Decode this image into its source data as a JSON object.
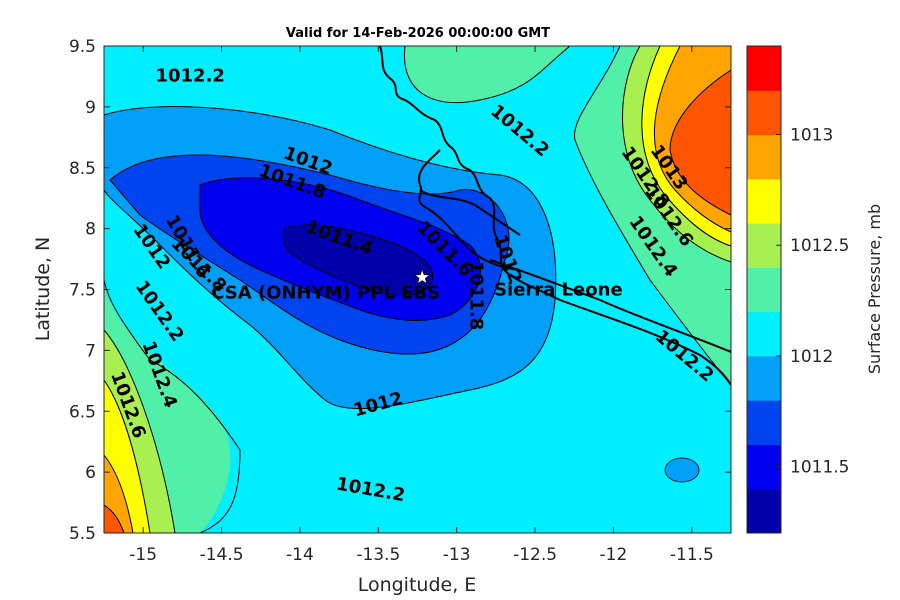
{
  "title": "Valid for 14-Feb-2026 00:00:00 GMT",
  "chart_data": {
    "type": "contour",
    "xlabel": "Longitude, E",
    "ylabel": "Latitude, N",
    "xlim": [
      -15.25,
      -11.25
    ],
    "ylim": [
      5.5,
      9.5
    ],
    "xticks": [
      -15,
      -14.5,
      -14,
      -13.5,
      -13,
      -12.5,
      -12,
      -11.5
    ],
    "yticks": [
      5.5,
      6,
      6.5,
      7,
      7.5,
      8,
      8.5,
      9,
      9.5
    ],
    "xtick_labels": [
      "-15",
      "-14.5",
      "-14",
      "-13.5",
      "-13",
      "-12.5",
      "-12",
      "-11.5"
    ],
    "ytick_labels": [
      "5.5",
      "6",
      "6.5",
      "7",
      "7.5",
      "8",
      "8.5",
      "9",
      "9.5"
    ],
    "colorbar": {
      "label": "Surface Pressure, mb",
      "range": [
        1011.2,
        1013.4
      ],
      "levels": [
        1011.2,
        1011.4,
        1011.6,
        1011.8,
        1012.0,
        1012.2,
        1012.4,
        1012.6,
        1012.8,
        1013.0,
        1013.2,
        1013.4
      ],
      "colors": [
        "#0000aa",
        "#0000f0",
        "#0044f0",
        "#00a0f8",
        "#00eefe",
        "#50f0a8",
        "#a8f050",
        "#fefe00",
        "#ffa400",
        "#ff5400",
        "#ff0000",
        "#aa0000"
      ],
      "tick_values": [
        1011.5,
        1012,
        1012.5,
        1013
      ],
      "tick_labels": [
        "1011.5",
        "1012",
        "1012.5",
        "1013"
      ]
    },
    "contour_labels": [
      {
        "text": "1012.2",
        "lon": -14.7,
        "lat": 9.25,
        "angle": 0
      },
      {
        "text": "1012",
        "lon": -13.95,
        "lat": 8.55,
        "angle": 20
      },
      {
        "text": "1011.8",
        "lon": -14.05,
        "lat": 8.38,
        "angle": 20
      },
      {
        "text": "1011.4",
        "lon": -13.75,
        "lat": 7.92,
        "angle": 20
      },
      {
        "text": "1011.6",
        "lon": -14.72,
        "lat": 7.85,
        "angle": 60
      },
      {
        "text": "1011.6",
        "lon": -13.08,
        "lat": 7.83,
        "angle": 45
      },
      {
        "text": "1011.8",
        "lon": -14.65,
        "lat": 7.7,
        "angle": 45
      },
      {
        "text": "1012",
        "lon": -14.95,
        "lat": 7.85,
        "angle": 55
      },
      {
        "text": "1012.2",
        "lon": -14.9,
        "lat": 7.32,
        "angle": 55
      },
      {
        "text": "1012.4",
        "lon": -14.9,
        "lat": 6.8,
        "angle": 70
      },
      {
        "text": "1012.6",
        "lon": -15.1,
        "lat": 6.55,
        "angle": 70
      },
      {
        "text": "1012",
        "lon": -13.5,
        "lat": 6.55,
        "angle": -15
      },
      {
        "text": "1012.2",
        "lon": -13.55,
        "lat": 5.85,
        "angle": 10
      },
      {
        "text": "1012.2",
        "lon": -12.6,
        "lat": 8.8,
        "angle": 40
      },
      {
        "text": "1012",
        "lon": -12.68,
        "lat": 7.75,
        "angle": 70
      },
      {
        "text": "1011.8",
        "lon": -12.88,
        "lat": 7.45,
        "angle": 90
      },
      {
        "text": "1013",
        "lon": -11.65,
        "lat": 8.5,
        "angle": 55
      },
      {
        "text": "1012.8",
        "lon": -11.8,
        "lat": 8.42,
        "angle": 55
      },
      {
        "text": "1012.6",
        "lon": -11.65,
        "lat": 8.1,
        "angle": 55
      },
      {
        "text": "1012.4",
        "lon": -11.75,
        "lat": 7.85,
        "angle": 55
      },
      {
        "text": "1012.2",
        "lon": -11.55,
        "lat": 6.95,
        "angle": 40
      }
    ],
    "station": {
      "name": "CSA (ONHYM) PPL EBS",
      "lon": -13.22,
      "lat": 7.6
    },
    "country_label": "Sierra Leone",
    "country_label_position": {
      "lon": -12.2,
      "lat": 7.5
    }
  }
}
